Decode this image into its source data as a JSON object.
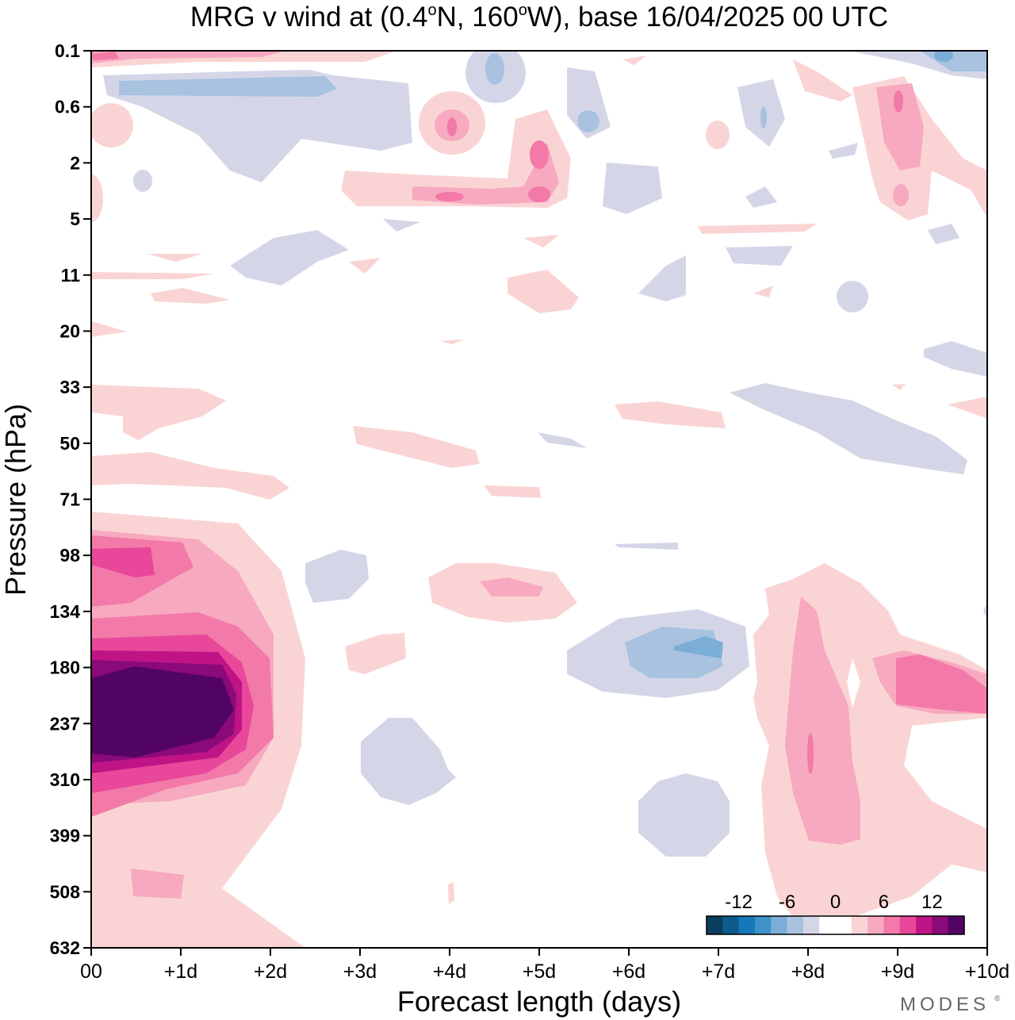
{
  "title": "MRG v wind at (0.4°N, 160°W),  base 16/04/2025  00 UTC",
  "title_parts": {
    "prefix": "MRG v wind at (0.4",
    "deg": "o",
    "mid": "N, 160",
    "suffix": "W),  base 16/04/2025  00 UTC"
  },
  "brand": "MODES",
  "brand_mark": "®",
  "chart_data": {
    "type": "heatmap",
    "title": "MRG v wind at (0.4°N, 160°W),  base 16/04/2025  00 UTC",
    "xlabel": "Forecast length (days)",
    "ylabel": "Pressure (hPa)",
    "x_ticks": [
      "00",
      "+1d",
      "+2d",
      "+3d",
      "+4d",
      "+5d",
      "+6d",
      "+7d",
      "+8d",
      "+9d",
      "+10d"
    ],
    "x_range_days": [
      0,
      10
    ],
    "y_ticks": [
      "0.1",
      "0.6",
      "2",
      "5",
      "11",
      "20",
      "33",
      "50",
      "71",
      "98",
      "134",
      "180",
      "237",
      "310",
      "399",
      "508",
      "632"
    ],
    "y_range_hPa": [
      0.1,
      632
    ],
    "y_axis_inverted": true,
    "grid": false,
    "colorbar": {
      "placement": "bottom-right",
      "tick_labels": [
        "-12",
        "-6",
        "0",
        "6",
        "12"
      ],
      "tick_values": [
        -12,
        -6,
        0,
        6,
        12
      ],
      "range": [
        -16,
        16
      ],
      "step": 2,
      "colors": [
        "#0b3d5c",
        "#0d5a8c",
        "#1479b8",
        "#3d93c9",
        "#7aaed6",
        "#a8c2e0",
        "#d4d6e8",
        "#ffffff",
        "#ffffff",
        "#fad4d4",
        "#f7a9bf",
        "#f279a8",
        "#e8479a",
        "#c01486",
        "#8a0a7a",
        "#520463"
      ]
    },
    "features": [
      {
        "level": 7,
        "x_day": 0.65,
        "y_hPa": 224,
        "note": "strong positive core near 180-310 hPa, day 0-1.5"
      },
      {
        "level": 4,
        "x_day": 0.6,
        "y_hPa": 98,
        "note": "positive maximum near 98 hPa"
      },
      {
        "level": 3,
        "x_day": 9.9,
        "y_hPa": 200,
        "note": "positive band near +9.5d"
      },
      {
        "level": 2,
        "x_day": 8.0,
        "y_hPa": 250,
        "note": "positive region +8d"
      },
      {
        "level": -2,
        "x_day": 6.7,
        "y_hPa": 165,
        "note": "negative region +6.5d to +7d"
      },
      {
        "level": -3,
        "x_day": 9.5,
        "y_hPa": 0.12,
        "note": "negative near top, +9.5d"
      }
    ]
  }
}
